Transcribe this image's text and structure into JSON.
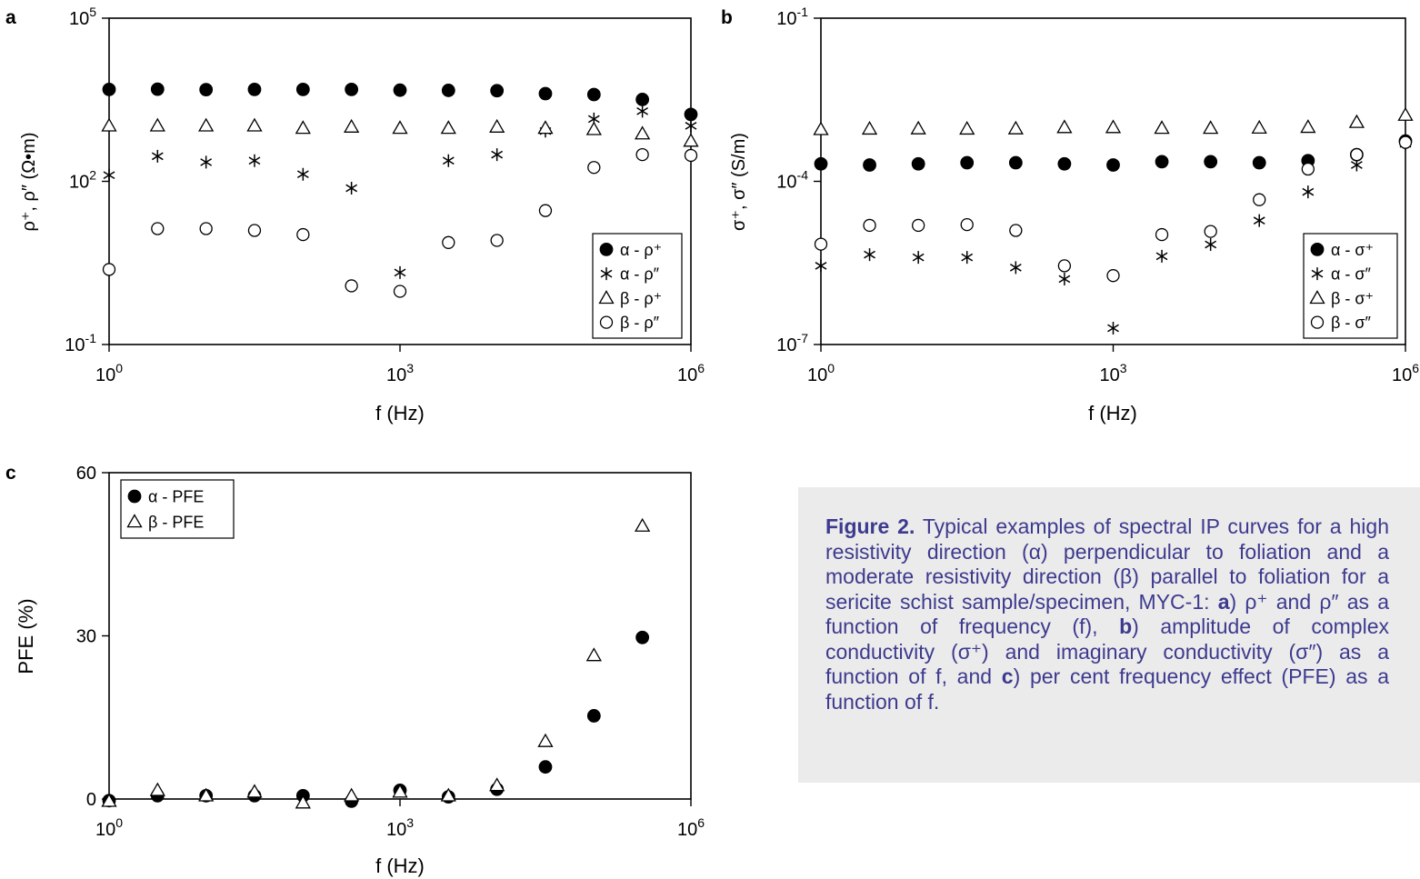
{
  "chart_data": [
    {
      "panel": "a",
      "type": "scatter",
      "xlabel": "f (Hz)",
      "ylabel": "ρ⁺, ρ″ (Ω•m)",
      "xscale": "log",
      "yscale": "log",
      "xlim": [
        1,
        1000000
      ],
      "ylim": [
        0.1,
        100000
      ],
      "xticks": [
        {
          "v": 1,
          "base": "10",
          "exp": "0"
        },
        {
          "v": 1000,
          "base": "10",
          "exp": "3"
        },
        {
          "v": 1000000,
          "base": "10",
          "exp": "6"
        }
      ],
      "yticks": [
        {
          "v": 0.1,
          "base": "10",
          "exp": "-1"
        },
        {
          "v": 100,
          "base": "10",
          "exp": "2"
        },
        {
          "v": 100000,
          "base": "10",
          "exp": "5"
        }
      ],
      "x": [
        1,
        3.16,
        10,
        31.6,
        100,
        316,
        1000,
        3160,
        10000,
        31600,
        100000,
        316000,
        1000000
      ],
      "legend_position": "bottom-right",
      "series": [
        {
          "name": "α - ρ⁺",
          "marker": "filled-circle",
          "values": [
            4900,
            4950,
            4850,
            4900,
            4900,
            4900,
            4750,
            4700,
            4650,
            4100,
            3950,
            3200,
            1700
          ]
        },
        {
          "name": "α - ρ″",
          "marker": "star",
          "values": [
            130,
            290,
            225,
            240,
            135,
            75,
            2.1,
            240,
            310,
            840,
            1400,
            1950,
            1050
          ]
        },
        {
          "name": "β - ρ⁺",
          "marker": "open-triangle",
          "values": [
            1050,
            1050,
            1050,
            1050,
            950,
            1000,
            950,
            950,
            1000,
            950,
            900,
            750,
            550
          ]
        },
        {
          "name": "β - ρ″",
          "marker": "open-circle",
          "values": [
            2.4,
            13.5,
            13.5,
            12.5,
            10.5,
            1.2,
            0.95,
            7.5,
            8.2,
            29,
            180,
            310,
            300
          ]
        }
      ]
    },
    {
      "panel": "b",
      "type": "scatter",
      "xlabel": "f (Hz)",
      "ylabel": "σ⁺, σ″ (S/m)",
      "xscale": "log",
      "yscale": "log",
      "xlim": [
        1,
        1000000
      ],
      "ylim": [
        1e-07,
        0.1
      ],
      "xticks": [
        {
          "v": 1,
          "base": "10",
          "exp": "0"
        },
        {
          "v": 1000,
          "base": "10",
          "exp": "3"
        },
        {
          "v": 1000000,
          "base": "10",
          "exp": "6"
        }
      ],
      "yticks": [
        {
          "v": 1e-07,
          "base": "10",
          "exp": "-7"
        },
        {
          "v": 0.0001,
          "base": "10",
          "exp": "-4"
        },
        {
          "v": 0.1,
          "base": "10",
          "exp": "-1"
        }
      ],
      "x": [
        1,
        3.16,
        10,
        31.6,
        100,
        316,
        1000,
        3160,
        10000,
        31600,
        100000,
        316000,
        1000000
      ],
      "legend_position": "bottom-right",
      "series": [
        {
          "name": "α - σ⁺",
          "marker": "filled-circle",
          "values": [
            0.00021,
            0.0002,
            0.00021,
            0.00022,
            0.00022,
            0.00021,
            0.0002,
            0.00023,
            0.00023,
            0.00022,
            0.00024,
            0.00031,
            0.00055
          ]
        },
        {
          "name": "α - σ″",
          "marker": "star",
          "values": [
            2.8e-06,
            4.5e-06,
            4e-06,
            4e-06,
            2.6e-06,
            1.6e-06,
            2e-07,
            4.2e-06,
            6.9e-06,
            1.9e-05,
            6.4e-05,
            0.0002,
            0.00049
          ]
        },
        {
          "name": "β - σ⁺",
          "marker": "open-triangle",
          "values": [
            0.0009,
            0.00092,
            0.00093,
            0.00092,
            0.00093,
            0.00098,
            0.00098,
            0.00095,
            0.00095,
            0.00096,
            0.00099,
            0.00122,
            0.00165
          ]
        },
        {
          "name": "β - σ″",
          "marker": "open-circle",
          "values": [
            7e-06,
            1.55e-05,
            1.55e-05,
            1.6e-05,
            1.25e-05,
            2.8e-06,
            1.85e-06,
            1.05e-05,
            1.2e-05,
            4.6e-05,
            0.000168,
            0.00031,
            0.00052
          ]
        }
      ]
    },
    {
      "panel": "c",
      "type": "scatter",
      "xlabel": "f (Hz)",
      "ylabel": "PFE (%)",
      "xscale": "log",
      "yscale": "linear",
      "xlim": [
        1,
        1000000
      ],
      "ylim": [
        0,
        60
      ],
      "xticks": [
        {
          "v": 1,
          "base": "10",
          "exp": "0"
        },
        {
          "v": 1000,
          "base": "10",
          "exp": "3"
        },
        {
          "v": 1000000,
          "base": "10",
          "exp": "6"
        }
      ],
      "yticks": [
        {
          "v": 0,
          "label": "0"
        },
        {
          "v": 30,
          "label": "30"
        },
        {
          "v": 60,
          "label": "60"
        }
      ],
      "x": [
        1,
        3.16,
        10,
        31.6,
        100,
        316,
        1000,
        3160,
        10000,
        31600,
        100000,
        316000
      ],
      "legend_position": "top-left",
      "series": [
        {
          "name": "α - PFE",
          "marker": "filled-circle",
          "values": [
            -0.3,
            0.6,
            0.6,
            0.6,
            0.6,
            -0.4,
            1.6,
            0.4,
            1.8,
            5.9,
            15.3,
            29.7
          ]
        },
        {
          "name": "β - PFE",
          "marker": "open-triangle",
          "values": [
            -0.4,
            1.6,
            0.6,
            1.3,
            -0.7,
            0.6,
            1.3,
            0.6,
            2.5,
            10.6,
            26.4,
            50.2
          ]
        }
      ]
    }
  ],
  "panels": {
    "a": {
      "letter": "a"
    },
    "b": {
      "letter": "b"
    },
    "c": {
      "letter": "c"
    }
  },
  "caption": {
    "label": "Figure 2.",
    "text_1": " Typical examples of spectral IP curves for a high resistivity direction (α) perpendicular to foliation and a moderate resistivity direction (β) parallel to foliation for a sericite schist sample/specimen, MYC-1: ",
    "bold_a": "a",
    "text_2": ") ρ⁺ and ρ″ as a function of frequency (f), ",
    "bold_b": "b",
    "text_3": ") amplitude of complex conductivity (σ⁺) and imaginary conductivity (σ″) as a function of f, and ",
    "bold_c": "c",
    "text_4": ") per cent frequency effect (PFE) as a function of f."
  },
  "colors": {
    "caption_text": "#3d3a8e",
    "caption_background": "#ebebeb",
    "axes": "#000000"
  }
}
